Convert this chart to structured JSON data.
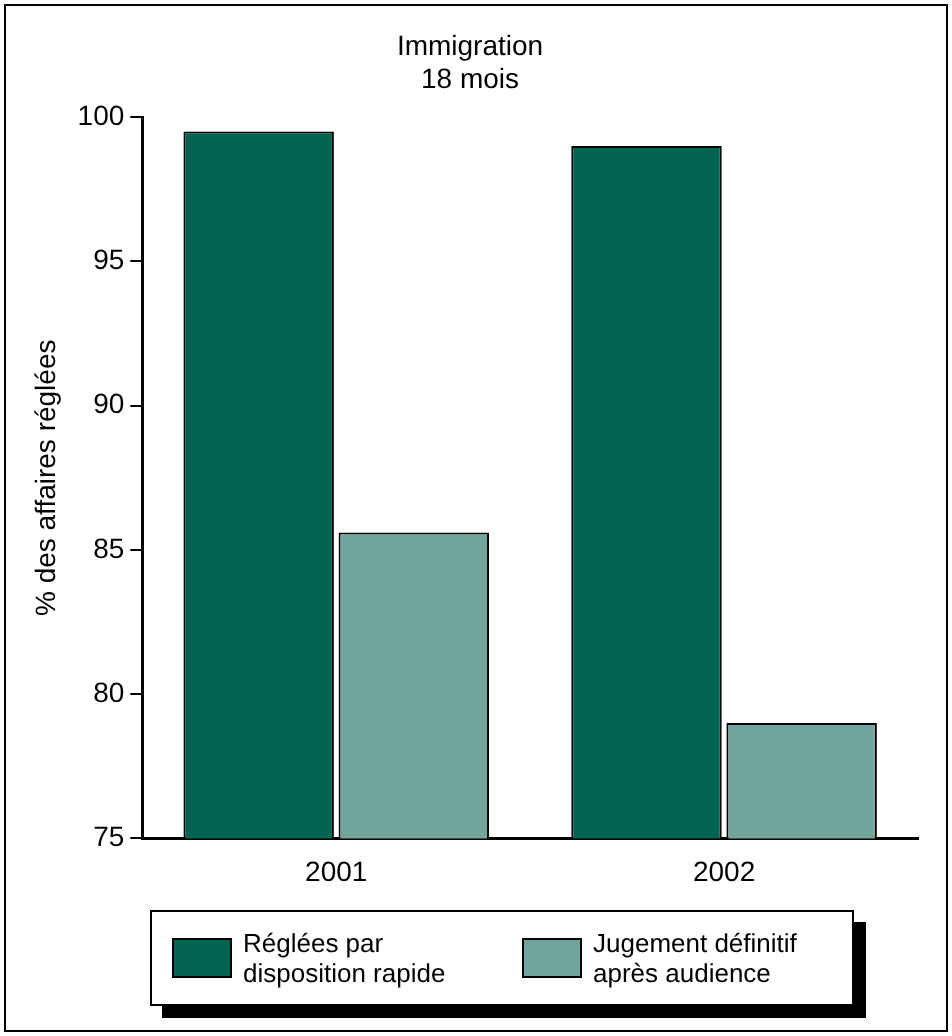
{
  "chart_data": {
    "type": "bar",
    "title": "Immigration",
    "subtitle": "18 mois",
    "ylabel": "% des affaires réglées",
    "categories": [
      "2001",
      "2002"
    ],
    "series": [
      {
        "name": "Réglées par disposition rapide",
        "color": "#006450",
        "values": [
          99.5,
          99.0
        ]
      },
      {
        "name": "Jugement définitif après audience",
        "color": "#72a59b",
        "values": [
          85.6,
          79.0
        ]
      }
    ],
    "ylim": [
      75,
      100
    ],
    "yticks": [
      75,
      80,
      85,
      90,
      95,
      100
    ],
    "grid": false,
    "legend": "bottom"
  }
}
